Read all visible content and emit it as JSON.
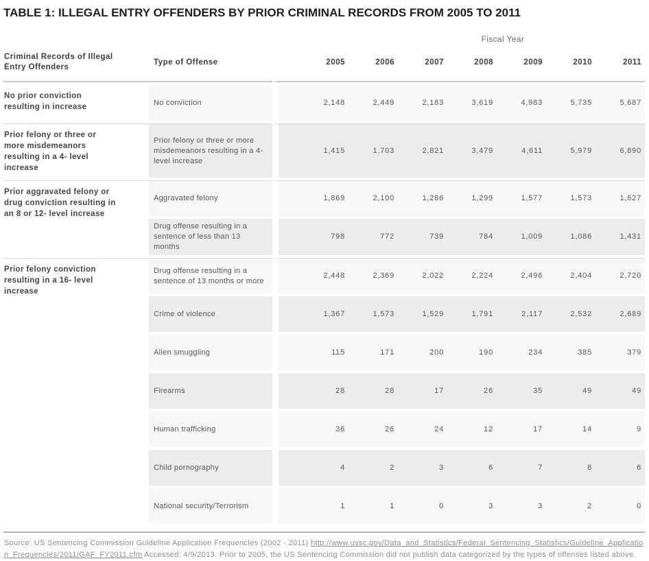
{
  "title": "TABLE 1: ILLEGAL ENTRY OFFENDERS BY PRIOR CRIMINAL RECORDS FROM 2005 TO 2011",
  "table": {
    "fiscal_year_label": "Fiscal Year",
    "col1_header": "Criminal Records of Illegal Entry Offenders",
    "col2_header": "Type of Offense",
    "years": [
      "2005",
      "2006",
      "2007",
      "2008",
      "2009",
      "2010",
      "2011"
    ],
    "groups": [
      {
        "record": "No prior conviction resulting in increase",
        "rows": [
          {
            "offense": "No conviction",
            "values": [
              "2,148",
              "2,449",
              "2,183",
              "3,619",
              "4,983",
              "5,735",
              "5,687"
            ]
          }
        ]
      },
      {
        "record": "Prior felony or three or more misdemeanors resulting in a 4- level increase",
        "rows": [
          {
            "offense": "Prior felony or three or more misdemeanors resulting in a 4- level increase",
            "values": [
              "1,415",
              "1,703",
              "2,821",
              "3,479",
              "4,611",
              "5,979",
              "6,890"
            ]
          }
        ]
      },
      {
        "record": "Prior aggravated felony or drug conviction resulting in an 8 or 12- level increase",
        "rows": [
          {
            "offense": "Aggravated felony",
            "values": [
              "1,869",
              "2,100",
              "1,286",
              "1,299",
              "1,577",
              "1,573",
              "1,627"
            ]
          },
          {
            "offense": "Drug offense resulting in a sentence of less than 13 months",
            "values": [
              "798",
              "772",
              "739",
              "784",
              "1,009",
              "1,086",
              "1,431"
            ]
          }
        ]
      },
      {
        "record": "Prior felony conviction resulting in a 16- level increase",
        "rows": [
          {
            "offense": "Drug offense resulting in a sentence of 13 months or more",
            "values": [
              "2,448",
              "2,369",
              "2,022",
              "2,224",
              "2,496",
              "2,404",
              "2,720"
            ]
          },
          {
            "offense": "Crime of violence",
            "values": [
              "1,367",
              "1,573",
              "1,529",
              "1,791",
              "2,117",
              "2,532",
              "2,689"
            ]
          },
          {
            "offense": "Alien smuggling",
            "values": [
              "115",
              "171",
              "200",
              "190",
              "234",
              "385",
              "379"
            ]
          },
          {
            "offense": "Firearms",
            "values": [
              "28",
              "28",
              "17",
              "26",
              "35",
              "49",
              "49"
            ]
          },
          {
            "offense": "Human trafficking",
            "values": [
              "36",
              "26",
              "24",
              "12",
              "17",
              "14",
              "9"
            ]
          },
          {
            "offense": "Child pornography",
            "values": [
              "4",
              "2",
              "3",
              "6",
              "7",
              "8",
              "6"
            ]
          },
          {
            "offense": "National security/Terrorism",
            "values": [
              "1",
              "1",
              "0",
              "3",
              "3",
              "2",
              "0"
            ]
          }
        ]
      }
    ]
  },
  "source": {
    "prefix": "Source: US Sentencing Commission Guideline Application Frequencies (2002 - 2011) ",
    "link": "http://www.ussc.gov/Data_and_Statistics/Federal_Sentencing_Statistics/Guideline_Application_Frequencies/2011/GAF_FY2011.cfm",
    "suffix": " Accessed: 4/9/2013. Prior to 2005, the US Sentencing Commission did not publish data categorized by the types of offenses listed above."
  },
  "colors": {
    "row_stripe_light": "#f7f7f7",
    "row_stripe_dark": "#ececec",
    "header_rule": "#c6c6c6",
    "group_divider": "#d9d9d9",
    "source_rule": "#b6b6b6",
    "title_text": "#1f1f1f",
    "header_text": "#3d3d3d",
    "body_text": "#565656",
    "record_text": "#454545",
    "muted_text": "#8d8d8d"
  },
  "chart_data": {
    "type": "table",
    "title": "TABLE 1: ILLEGAL ENTRY OFFENDERS BY PRIOR CRIMINAL RECORDS FROM 2005 TO 2011",
    "x": [
      2005,
      2006,
      2007,
      2008,
      2009,
      2010,
      2011
    ],
    "xlabel": "Fiscal Year",
    "series": [
      {
        "name": "No conviction",
        "values": [
          2148,
          2449,
          2183,
          3619,
          4983,
          5735,
          5687
        ]
      },
      {
        "name": "Prior felony or three or more misdemeanors resulting in a 4- level increase",
        "values": [
          1415,
          1703,
          2821,
          3479,
          4611,
          5979,
          6890
        ]
      },
      {
        "name": "Aggravated felony",
        "values": [
          1869,
          2100,
          1286,
          1299,
          1577,
          1573,
          1627
        ]
      },
      {
        "name": "Drug offense resulting in a sentence of less than 13 months",
        "values": [
          798,
          772,
          739,
          784,
          1009,
          1086,
          1431
        ]
      },
      {
        "name": "Drug offense resulting in a sentence of 13 months or more",
        "values": [
          2448,
          2369,
          2022,
          2224,
          2496,
          2404,
          2720
        ]
      },
      {
        "name": "Crime of violence",
        "values": [
          1367,
          1573,
          1529,
          1791,
          2117,
          2532,
          2689
        ]
      },
      {
        "name": "Alien smuggling",
        "values": [
          115,
          171,
          200,
          190,
          234,
          385,
          379
        ]
      },
      {
        "name": "Firearms",
        "values": [
          28,
          28,
          17,
          26,
          35,
          49,
          49
        ]
      },
      {
        "name": "Human trafficking",
        "values": [
          36,
          26,
          24,
          12,
          17,
          14,
          9
        ]
      },
      {
        "name": "Child pornography",
        "values": [
          4,
          2,
          3,
          6,
          7,
          8,
          6
        ]
      },
      {
        "name": "National security/Terrorism",
        "values": [
          1,
          1,
          0,
          3,
          3,
          2,
          0
        ]
      }
    ]
  }
}
